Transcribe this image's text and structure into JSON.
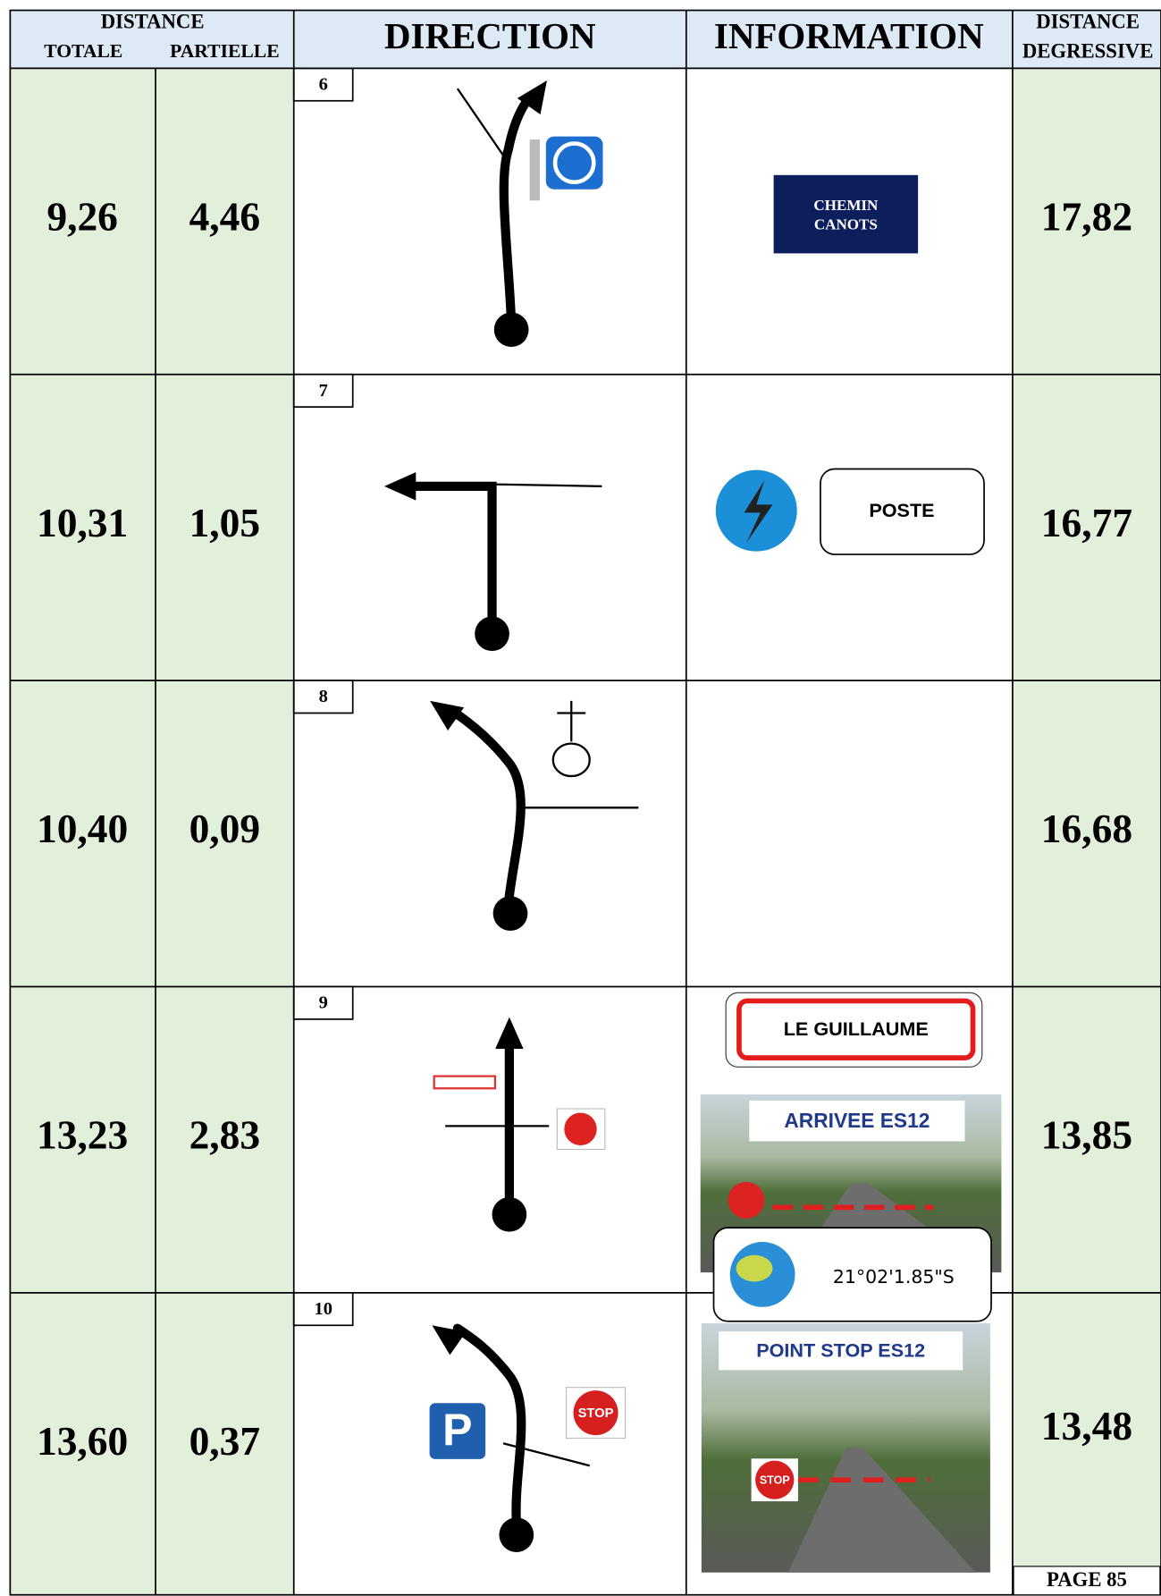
{
  "header": {
    "distance": "DISTANCE",
    "totale": "TOTALE",
    "partielle": "PARTIELLE",
    "direction": "DIRECTION",
    "information": "INFORMATION",
    "degressive": [
      "DISTANCE",
      "DEGRESSIVE"
    ]
  },
  "rows": [
    {
      "total": "9,26",
      "partial": "4,46",
      "number": "6",
      "info": {
        "sign": [
          "CHEMIN",
          "CANOTS"
        ]
      },
      "remaining": "17,82"
    },
    {
      "total": "10,31",
      "partial": "1,05",
      "number": "7",
      "info": {
        "sign": "POSTE"
      },
      "remaining": "16,77"
    },
    {
      "total": "10,40",
      "partial": "0,09",
      "number": "8",
      "remaining": "16,68"
    },
    {
      "total": "13,23",
      "partial": "2,83",
      "number": "9",
      "info": {
        "sign": "LE GUILLAUME",
        "photo_label": "ARRIVEE ES12",
        "coordinates": "21°02'1.85\"S"
      },
      "remaining": "13,85"
    },
    {
      "total": "13,60",
      "partial": "0,37",
      "number": "10",
      "direction_signs": {
        "parking": "P",
        "stop": "STOP"
      },
      "info": {
        "photo_label": "POINT STOP ES12",
        "stop": "STOP"
      },
      "remaining": "13,48"
    }
  ],
  "footer": {
    "page": "PAGE 85"
  }
}
